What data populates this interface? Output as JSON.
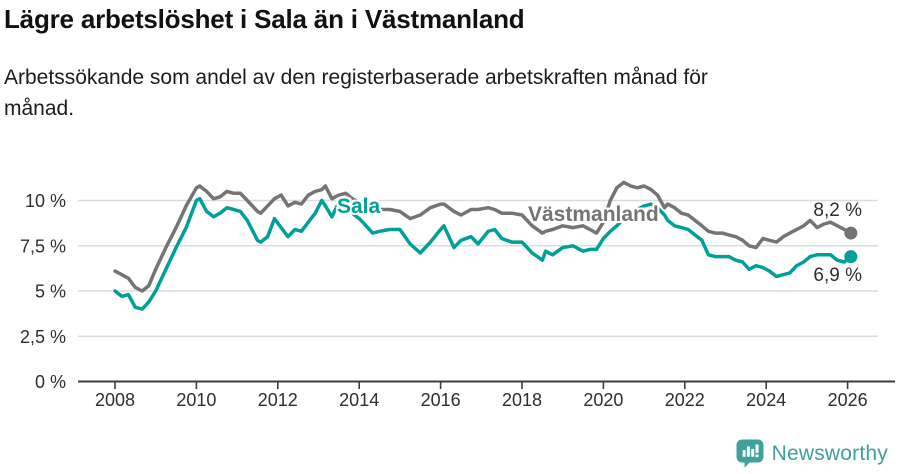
{
  "header": {
    "title": "Lägre arbetslöshet i Sala än i Västmanland",
    "subtitle": "Arbetssökande som andel av den registerbaserade arbetskraften månad för månad."
  },
  "chart_data": {
    "type": "line",
    "title": "Lägre arbetslöshet i Sala än i Västmanland",
    "xlabel": "",
    "ylabel": "",
    "y_unit": "%",
    "grid": "horizontal",
    "legend": "inline-labels",
    "xlim": [
      2007.9,
      2026.6
    ],
    "ylim": [
      0,
      11.7
    ],
    "x_tick_values": [
      2008,
      2010,
      2012,
      2014,
      2016,
      2018,
      2020,
      2022,
      2024,
      2026
    ],
    "x_tick_labels": [
      "2008",
      "2010",
      "2012",
      "2014",
      "2016",
      "2018",
      "2020",
      "2022",
      "2024",
      "2026"
    ],
    "y_tick_values": [
      0,
      2.5,
      5,
      7.5,
      10
    ],
    "y_tick_labels": [
      "0 %",
      "2,5 %",
      "5 %",
      "7,5 %",
      "10 %"
    ],
    "x": [
      2008.0,
      2008.17,
      2008.33,
      2008.5,
      2008.67,
      2008.83,
      2009.0,
      2009.25,
      2009.5,
      2009.75,
      2010.0,
      2010.08,
      2010.25,
      2010.42,
      2010.58,
      2010.75,
      2010.92,
      2011.08,
      2011.25,
      2011.5,
      2011.58,
      2011.75,
      2011.92,
      2012.08,
      2012.25,
      2012.42,
      2012.58,
      2012.75,
      2012.92,
      2013.08,
      2013.17,
      2013.33,
      2013.5,
      2013.67,
      2013.83,
      2014.0,
      2014.17,
      2014.33,
      2014.5,
      2014.75,
      2015.0,
      2015.25,
      2015.5,
      2015.75,
      2016.0,
      2016.08,
      2016.33,
      2016.5,
      2016.75,
      2016.92,
      2017.17,
      2017.33,
      2017.5,
      2017.75,
      2018.0,
      2018.25,
      2018.5,
      2018.58,
      2018.75,
      2019.0,
      2019.25,
      2019.5,
      2019.67,
      2019.83,
      2020.0,
      2020.17,
      2020.33,
      2020.5,
      2020.67,
      2020.83,
      2021.0,
      2021.17,
      2021.33,
      2021.5,
      2021.58,
      2021.75,
      2021.92,
      2022.08,
      2022.25,
      2022.42,
      2022.58,
      2022.75,
      2022.92,
      2023.08,
      2023.25,
      2023.42,
      2023.58,
      2023.75,
      2023.92,
      2024.08,
      2024.25,
      2024.42,
      2024.58,
      2024.75,
      2024.92,
      2025.08,
      2025.25,
      2025.42,
      2025.58,
      2025.75,
      2025.92,
      2026.08
    ],
    "series": [
      {
        "name": "Sala",
        "color": "#00A099",
        "end_label": "6,9 %",
        "end_value": 6.9,
        "values": [
          5.0,
          4.7,
          4.8,
          4.1,
          4.0,
          4.4,
          5.0,
          6.2,
          7.4,
          8.5,
          10.0,
          10.1,
          9.4,
          9.1,
          9.3,
          9.6,
          9.5,
          9.4,
          8.9,
          7.8,
          7.7,
          8.0,
          9.0,
          8.5,
          8.0,
          8.4,
          8.3,
          8.8,
          9.3,
          10.0,
          9.7,
          9.1,
          9.9,
          9.6,
          9.3,
          9.0,
          8.6,
          8.2,
          8.3,
          8.4,
          8.4,
          7.6,
          7.1,
          7.7,
          8.4,
          8.6,
          7.4,
          7.8,
          8.0,
          7.6,
          8.3,
          8.4,
          7.9,
          7.7,
          7.7,
          7.1,
          6.7,
          7.2,
          7.0,
          7.4,
          7.5,
          7.2,
          7.3,
          7.3,
          7.9,
          8.3,
          8.6,
          9.0,
          9.3,
          9.5,
          9.7,
          9.8,
          9.6,
          9.2,
          8.9,
          8.6,
          8.5,
          8.4,
          8.1,
          7.8,
          7.0,
          6.9,
          6.9,
          6.9,
          6.7,
          6.6,
          6.2,
          6.4,
          6.3,
          6.1,
          5.8,
          5.9,
          6.0,
          6.4,
          6.6,
          6.9,
          7.0,
          7.0,
          7.0,
          6.7,
          6.6,
          6.9
        ]
      },
      {
        "name": "Västmanland",
        "color": "#747474",
        "end_label": "8,2 %",
        "end_value": 8.2,
        "values": [
          6.1,
          5.9,
          5.7,
          5.2,
          5.0,
          5.3,
          6.2,
          7.4,
          8.5,
          9.7,
          10.7,
          10.8,
          10.5,
          10.1,
          10.2,
          10.5,
          10.4,
          10.4,
          10.0,
          9.4,
          9.3,
          9.7,
          10.1,
          10.3,
          9.7,
          9.9,
          9.8,
          10.3,
          10.5,
          10.6,
          10.8,
          10.1,
          10.3,
          10.4,
          10.1,
          9.9,
          9.6,
          9.4,
          9.5,
          9.5,
          9.4,
          9.0,
          9.2,
          9.6,
          9.8,
          9.8,
          9.4,
          9.2,
          9.5,
          9.5,
          9.6,
          9.5,
          9.3,
          9.3,
          9.2,
          8.6,
          8.2,
          8.3,
          8.4,
          8.6,
          8.5,
          8.6,
          8.4,
          8.2,
          8.8,
          10.0,
          10.7,
          11.0,
          10.8,
          10.7,
          10.8,
          10.6,
          10.3,
          9.6,
          9.8,
          9.6,
          9.3,
          9.2,
          8.9,
          8.6,
          8.3,
          8.2,
          8.2,
          8.1,
          8.0,
          7.8,
          7.5,
          7.4,
          7.9,
          7.8,
          7.7,
          8.0,
          8.2,
          8.4,
          8.6,
          8.9,
          8.5,
          8.7,
          8.8,
          8.6,
          8.4,
          8.2
        ]
      }
    ]
  },
  "footer": {
    "brand": "Newsworthy",
    "logo_icon": "bar-chart-speech-bubble-icon"
  },
  "colors": {
    "sala_teal": "#00A099",
    "vastmanland_gray": "#747474",
    "axis": "#3C3C3C",
    "gridline": "#DCDCDC",
    "tick_text": "#2E2E2E",
    "brand_teal": "#3FA09D"
  }
}
